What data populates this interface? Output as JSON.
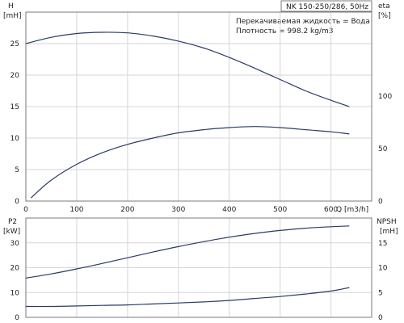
{
  "header": {
    "model": "NK 150-250/286, 50Hz",
    "liquid_line": "Перекачиваемая жидкость = Вода",
    "density_line": "Плотность = 998.2 kg/m3"
  },
  "colors": {
    "curve": "#2b3a67",
    "grid": "#d6d6d6",
    "frame": "#7a7a7a"
  },
  "chart_data": [
    {
      "type": "line",
      "name": "upper",
      "xlabel": "Q [m3/h]",
      "x_ticks": [
        0,
        100,
        200,
        300,
        400,
        500,
        600
      ],
      "xlim": [
        0,
        680
      ],
      "left_axis": {
        "label_top": "H",
        "label_unit": "[mH]",
        "ylim": [
          0,
          30
        ],
        "ticks": [
          0,
          5,
          10,
          15,
          20,
          25
        ]
      },
      "right_axis": {
        "label_top": "eta",
        "label_unit": "[%]",
        "ylim": [
          0,
          180
        ],
        "ticks": [
          0,
          50,
          100
        ]
      },
      "series": [
        {
          "axis": "left",
          "x": [
            0,
            50,
            100,
            150,
            200,
            250,
            300,
            350,
            400,
            450,
            500,
            550,
            600,
            636
          ],
          "y": [
            25.0,
            26.0,
            26.6,
            26.8,
            26.7,
            26.2,
            25.4,
            24.3,
            22.8,
            21.1,
            19.3,
            17.5,
            16.0,
            15.0
          ]
        },
        {
          "axis": "right",
          "x": [
            10,
            50,
            100,
            150,
            200,
            250,
            300,
            350,
            400,
            450,
            500,
            550,
            600,
            636
          ],
          "y": [
            3,
            20,
            35,
            46,
            54,
            60,
            65,
            68,
            70,
            71,
            70,
            68,
            66,
            64
          ]
        }
      ]
    },
    {
      "type": "line",
      "name": "lower",
      "x_ticks": [
        0,
        100,
        200,
        300,
        400,
        500,
        600
      ],
      "xlim": [
        0,
        680
      ],
      "left_axis": {
        "label_top": "P2",
        "label_unit": "[kW]",
        "ylim": [
          0,
          40
        ],
        "ticks": [
          0,
          10,
          20,
          30
        ]
      },
      "right_axis": {
        "label_top": "NPSH",
        "label_unit": "[mH]",
        "ylim": [
          0,
          20
        ],
        "ticks": [
          0,
          5,
          10,
          15
        ]
      },
      "series": [
        {
          "axis": "left",
          "x": [
            0,
            50,
            100,
            150,
            200,
            250,
            300,
            350,
            400,
            450,
            500,
            550,
            600,
            636
          ],
          "y": [
            15.8,
            17.5,
            19.5,
            21.7,
            24.0,
            26.3,
            28.5,
            30.5,
            32.3,
            33.8,
            35.0,
            35.9,
            36.5,
            36.8
          ]
        },
        {
          "axis": "right",
          "x": [
            0,
            50,
            100,
            150,
            200,
            250,
            300,
            350,
            400,
            450,
            500,
            550,
            600,
            636
          ],
          "y": [
            2.2,
            2.2,
            2.3,
            2.4,
            2.5,
            2.7,
            2.9,
            3.1,
            3.4,
            3.8,
            4.2,
            4.7,
            5.3,
            6.0
          ]
        }
      ]
    }
  ]
}
